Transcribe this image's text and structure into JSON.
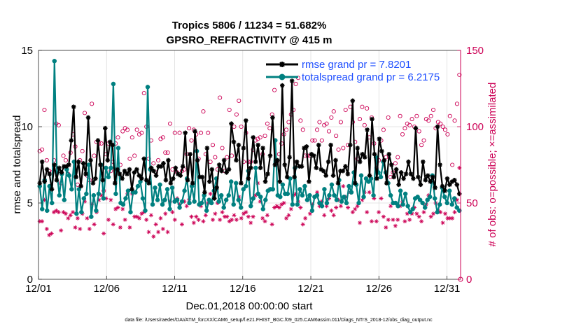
{
  "chart_data": {
    "type": "line",
    "title_line1": "Tropics 5806 / 11234 = 51.682%",
    "title_line2": "GPSRO_REFRACTIVITY @ 415 m",
    "xlabel": "Dec.01,2018 00:00:00 start",
    "ylabel": "rmse and totalspread",
    "ylabel_right": "# of obs: o=possible; ×=assimilated",
    "x_tick_labels": [
      "12/01",
      "12/06",
      "12/11",
      "12/16",
      "12/21",
      "12/26",
      "12/31"
    ],
    "x_tick_values": [
      0,
      5,
      10,
      15,
      20,
      25,
      30
    ],
    "xlim": [
      0,
      31
    ],
    "y_ticks_left": [
      "0",
      "5",
      "10",
      "15"
    ],
    "y_tick_values_left": [
      0,
      5,
      10,
      15
    ],
    "ylim_left": [
      0,
      15
    ],
    "y_ticks_right": [
      "0",
      "50",
      "100",
      "150"
    ],
    "y_tick_values_right": [
      0,
      50,
      100,
      150
    ],
    "ylim_right": [
      0,
      150
    ],
    "grid": true,
    "legend_position": "top-right",
    "series": [
      {
        "name": "rmse",
        "legend": "rmse grand pr = 7.8201",
        "color": "#000000",
        "marker": "asterisk",
        "axis": "left",
        "values": [
          6.3,
          7.7,
          6.4,
          7.2,
          6.9,
          5.9,
          7.5,
          6.5,
          7.3,
          7.0,
          7.4,
          7.4,
          7.5,
          9.1,
          11.3,
          6.7,
          7.7,
          6.1,
          7.6,
          6.9,
          10.6,
          7.8,
          6.3,
          6.6,
          9.1,
          7.5,
          6.5,
          9.9,
          7.8,
          9.0,
          8.8,
          6.3,
          7.2,
          6.9,
          6.6,
          7.1,
          6.9,
          7.2,
          5.9,
          7.0,
          7.2,
          6.8,
          6.6,
          7.9,
          6.5,
          6.3,
          7.3,
          7.1,
          6.8,
          7.4,
          7.4,
          7.6,
          6.5,
          7.8,
          6.3,
          6.6,
          7.3,
          6.9,
          6.8,
          7.4,
          9.6,
          6.5,
          8.2,
          6.3,
          9.7,
          7.8,
          6.7,
          6.7,
          5.7,
          8.6,
          6.4,
          7.2,
          5.3,
          6.0,
          7.5,
          7.1,
          7.8,
          7.0,
          7.2,
          10.2,
          9.0,
          7.8,
          8.8,
          6.3,
          8.6,
          10.4,
          6.6,
          7.3,
          9.3,
          7.7,
          8.8,
          7.3,
          8.6,
          6.4,
          6.9,
          8.1,
          10.6,
          7.5,
          7.8,
          6.4,
          12.7,
          7.5,
          6.7,
          8.0,
          13.0,
          6.7,
          7.7,
          7.4,
          7.4,
          8.6,
          8.7,
          6.4,
          8.2,
          8.1,
          7.3,
          8.8,
          7.2,
          7.1,
          6.8,
          7.7,
          8.8,
          6.8,
          7.8,
          6.3,
          7.1,
          7.1,
          7.4,
          6.9,
          8.8,
          11.7,
          6.3,
          8.6,
          7.7,
          8.2,
          8.0,
          9.8,
          6.8,
          10.5,
          8.2,
          6.6,
          9.2,
          8.4,
          7.8,
          6.3,
          8.2,
          7.5,
          6.7,
          7.2,
          6.2,
          7.0,
          6.6,
          6.9,
          7.7,
          6.9,
          6.6,
          9.9,
          6.7,
          6.2,
          7.7,
          6.5,
          6.8,
          6.4,
          6.7,
          6.0,
          10.0,
          7.5,
          6.1,
          5.8,
          6.6,
          6.2,
          6.4,
          6.5,
          6.2,
          5.6
        ]
      },
      {
        "name": "totalspread",
        "legend": "totalspread grand pr = 6.2175",
        "color": "#008080",
        "marker": "circle",
        "axis": "left",
        "values": [
          6.1,
          4.6,
          6.5,
          4.5,
          6.1,
          5.0,
          14.3,
          7.0,
          5.5,
          6.9,
          5.2,
          7.2,
          6.8,
          5.9,
          7.7,
          4.3,
          5.9,
          4.4,
          5.3,
          5.6,
          7.5,
          4.1,
          5.5,
          4.5,
          5.6,
          7.5,
          5.3,
          7.3,
          6.7,
          7.3,
          12.8,
          5.6,
          8.6,
          5.0,
          4.9,
          5.3,
          5.8,
          4.4,
          5.7,
          5.7,
          6.1,
          6.4,
          5.3,
          4.5,
          12.6,
          7.2,
          4.9,
          6.0,
          5.2,
          6.2,
          4.9,
          5.2,
          5.9,
          4.6,
          6.0,
          5.1,
          5.2,
          4.7,
          5.1,
          5.8,
          6.6,
          5.0,
          6.1,
          5.1,
          8.4,
          4.9,
          5.0,
          5.5,
          4.5,
          5.2,
          5.0,
          5.8,
          6.6,
          5.1,
          5.5,
          4.7,
          5.2,
          5.5,
          6.4,
          4.9,
          6.3,
          5.2,
          4.7,
          5.9,
          6.1,
          7.1,
          4.8,
          5.3,
          7.3,
          5.6,
          5.4,
          4.6,
          5.2,
          5.8,
          5.9,
          5.9,
          9.1,
          5.5,
          5.4,
          6.2,
          5.6,
          5.6,
          6.6,
          4.9,
          7.3,
          4.9,
          5.9,
          5.5,
          6.1,
          5.2,
          5.5,
          4.5,
          5.4,
          5.5,
          5.0,
          4.8,
          5.9,
          5.0,
          5.5,
          6.2,
          5.5,
          5.2,
          6.5,
          5.1,
          5.4,
          5.0,
          6.1,
          5.7,
          7.0,
          6.2,
          5.0,
          6.8,
          5.4,
          6.6,
          6.4,
          6.6,
          5.5,
          8.0,
          7.0,
          6.7,
          7.7,
          7.0,
          6.3,
          5.5,
          5.0,
          5.0,
          4.8,
          5.8,
          4.9,
          5.6,
          4.8,
          4.4,
          4.6,
          5.3,
          5.4,
          5.2,
          5.0,
          4.7,
          5.2,
          5.4,
          6.8,
          5.3,
          4.4,
          4.9,
          6.0,
          5.4,
          5.0,
          5.8,
          4.9,
          5.3,
          4.7,
          4.5
        ]
      },
      {
        "name": "obs possible",
        "marker": "open-circle",
        "color": "#cc0055",
        "axis": "right",
        "values": [
          84,
          85,
          111,
          78,
          71,
          70,
          78,
          102,
          101,
          63,
          81,
          78,
          69,
          83,
          95,
          87,
          62,
          78,
          84,
          109,
          68,
          65,
          115,
          81,
          90,
          89,
          89,
          58,
          82,
          89,
          71,
          77,
          89,
          93,
          75,
          97,
          99,
          98,
          79,
          93,
          81,
          98,
          95,
          96,
          122,
          100,
          79,
          91,
          76,
          70,
          78,
          92,
          93,
          83,
          83,
          102,
          72,
          96,
          70,
          96,
          71,
          72,
          82,
          99,
          91,
          98,
          95,
          79,
          96,
          110,
          82,
          96,
          77,
          88,
          80,
          72,
          119,
          86,
          71,
          80,
          111,
          81,
          100,
          108,
          117,
          100,
          77,
          96,
          77,
          77,
          85,
          91,
          92,
          93,
          82,
          94,
          102,
          99,
          108,
          124,
          77,
          82,
          89,
          95,
          98,
          103,
          108,
          111,
          128,
          132,
          104,
          98,
          81,
          81,
          81,
          91,
          91,
          98,
          103,
          91,
          101,
          102,
          97,
          106,
          110,
          94,
          85,
          103,
          86,
          111,
          88,
          113,
          103,
          90,
          79,
          105,
          113,
          101,
          112,
          93,
          106,
          89,
          73,
          78,
          91,
          98,
          80,
          106,
          67,
          70,
          76,
          80,
          107,
          95,
          99,
          102,
          101,
          105,
          100,
          107,
          97,
          88,
          91,
          105,
          104,
          107,
          111,
          99,
          103,
          102,
          100,
          98,
          95,
          107,
          75,
          104,
          115,
          134
        ]
      },
      {
        "name": "obs assimilated",
        "marker": "asterisk",
        "color": "#cc0055",
        "axis": "right",
        "values": [
          38,
          38,
          52,
          33,
          29,
          30,
          44,
          45,
          44,
          32,
          44,
          43,
          40,
          42,
          44,
          34,
          40,
          33,
          43,
          51,
          40,
          33,
          49,
          36,
          44,
          52,
          55,
          30,
          53,
          39,
          52,
          36,
          46,
          47,
          34,
          46,
          39,
          56,
          34,
          56,
          41,
          41,
          40,
          43,
          44,
          39,
          31,
          42,
          28,
          36,
          31,
          40,
          33,
          43,
          31,
          51,
          44,
          39,
          53,
          49,
          36,
          51,
          48,
          52,
          41,
          37,
          41,
          39,
          48,
          38,
          42,
          50,
          56,
          39,
          43,
          50,
          39,
          44,
          41,
          41,
          38,
          39,
          42,
          39,
          54,
          40,
          43,
          44,
          41,
          37,
          41,
          55,
          63,
          51,
          40,
          38,
          42,
          59,
          36,
          47,
          48,
          47,
          49,
          50,
          40,
          42,
          46,
          55,
          56,
          51,
          47,
          36,
          40,
          52,
          43,
          49,
          54,
          57,
          48,
          51,
          42,
          48,
          53,
          45,
          42,
          47,
          52,
          48,
          61,
          54,
          47,
          57,
          44,
          46,
          48,
          37,
          52,
          57,
          44,
          57,
          38,
          53,
          38,
          44,
          53,
          41,
          34,
          39,
          48,
          39,
          35,
          39,
          48,
          51,
          38,
          43,
          39,
          43,
          47,
          43,
          41,
          38,
          44,
          49,
          55,
          41,
          43,
          50,
          45,
          44,
          37,
          43,
          40,
          40,
          40,
          44,
          52,
          73
        ]
      }
    ],
    "footnote": "data file: /Users/raeder/DAI/ATM_forcXX/CAM6_setup/f.e21.FHIST_BGC.f09_025.CAM6assim.011/Diags_NTrS_2018-12/obs_diag_output.nc"
  }
}
